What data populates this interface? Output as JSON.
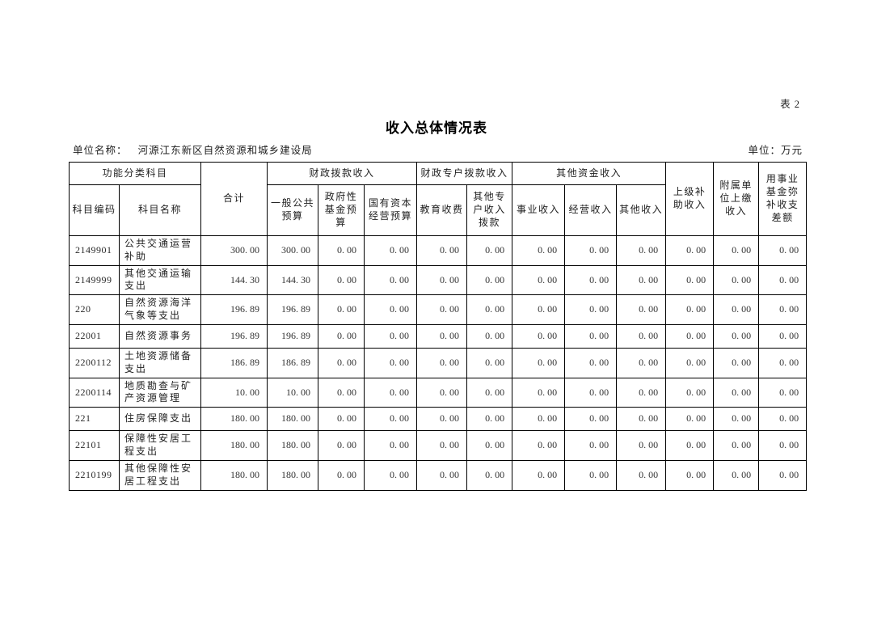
{
  "page": {
    "table_number": "表 2",
    "title": "收入总体情况表",
    "unit_name_label": "单位名称：",
    "unit_name_value": "河源江东新区自然资源和城乡建设局",
    "unit_label": "单位：万元"
  },
  "table": {
    "group_headers": {
      "functional_subject": "功能分类科目",
      "total": "合计",
      "fiscal_appropriation": "财政拨款收入",
      "fiscal_special_account": "财政专户拨款收入",
      "other_funds": "其他资金收入",
      "superior_subsidy": "上级补助收入",
      "affiliated_unit": "附属单位上缴收入",
      "career_fund": "用事业基金弥补收支差额"
    },
    "sub_headers": {
      "subject_code": "科目编码",
      "subject_name": "科目名称",
      "general_public_budget": "一般公共预算",
      "government_fund_budget": "政府性基金预算",
      "state_capital_budget": "国有资本经营预算",
      "education_fees": "教育收费",
      "other_special_account": "其他专户收入拨款",
      "business_income": "事业收入",
      "operating_income": "经营收入",
      "other_income": "其他收入"
    },
    "value_column_order": [
      "合计",
      "一般公共预算",
      "政府性基金预算",
      "国有资本经营预算",
      "教育收费",
      "其他专户收入拨款",
      "事业收入",
      "经营收入",
      "其他收入",
      "上级补助收入",
      "附属单位上缴收入",
      "用事业基金弥补收支差额"
    ],
    "rows": [
      {
        "code": "2149901",
        "name": "公共交通运营补助",
        "values": [
          "300. 00",
          "300. 00",
          "0. 00",
          "0. 00",
          "0. 00",
          "0. 00",
          "0. 00",
          "0. 00",
          "0. 00",
          "0. 00",
          "0. 00",
          "0. 00"
        ]
      },
      {
        "code": "2149999",
        "name": "其他交通运输支出",
        "values": [
          "144. 30",
          "144. 30",
          "0. 00",
          "0. 00",
          "0. 00",
          "0. 00",
          "0. 00",
          "0. 00",
          "0. 00",
          "0. 00",
          "0. 00",
          "0. 00"
        ]
      },
      {
        "code": "220",
        "name": "自然资源海洋气象等支出",
        "values": [
          "196. 89",
          "196. 89",
          "0. 00",
          "0. 00",
          "0. 00",
          "0. 00",
          "0. 00",
          "0. 00",
          "0. 00",
          "0. 00",
          "0. 00",
          "0. 00"
        ]
      },
      {
        "code": "22001",
        "name": "自然资源事务",
        "values": [
          "196. 89",
          "196. 89",
          "0. 00",
          "0. 00",
          "0. 00",
          "0. 00",
          "0. 00",
          "0. 00",
          "0. 00",
          "0. 00",
          "0. 00",
          "0. 00"
        ]
      },
      {
        "code": "2200112",
        "name": "土地资源储备支出",
        "values": [
          "186. 89",
          "186. 89",
          "0. 00",
          "0. 00",
          "0. 00",
          "0. 00",
          "0. 00",
          "0. 00",
          "0. 00",
          "0. 00",
          "0. 00",
          "0. 00"
        ]
      },
      {
        "code": "2200114",
        "name": "地质勘查与矿产资源管理",
        "values": [
          "10. 00",
          "10. 00",
          "0. 00",
          "0. 00",
          "0. 00",
          "0. 00",
          "0. 00",
          "0. 00",
          "0. 00",
          "0. 00",
          "0. 00",
          "0. 00"
        ]
      },
      {
        "code": "221",
        "name": "住房保障支出",
        "values": [
          "180. 00",
          "180. 00",
          "0. 00",
          "0. 00",
          "0. 00",
          "0. 00",
          "0. 00",
          "0. 00",
          "0. 00",
          "0. 00",
          "0. 00",
          "0. 00"
        ]
      },
      {
        "code": "22101",
        "name": "保障性安居工程支出",
        "values": [
          "180. 00",
          "180. 00",
          "0. 00",
          "0. 00",
          "0. 00",
          "0. 00",
          "0. 00",
          "0. 00",
          "0. 00",
          "0. 00",
          "0. 00",
          "0. 00"
        ]
      },
      {
        "code": "2210199",
        "name": "其他保障性安居工程支出",
        "values": [
          "180. 00",
          "180. 00",
          "0. 00",
          "0. 00",
          "0. 00",
          "0. 00",
          "0. 00",
          "0. 00",
          "0. 00",
          "0. 00",
          "0. 00",
          "0. 00"
        ]
      }
    ]
  }
}
